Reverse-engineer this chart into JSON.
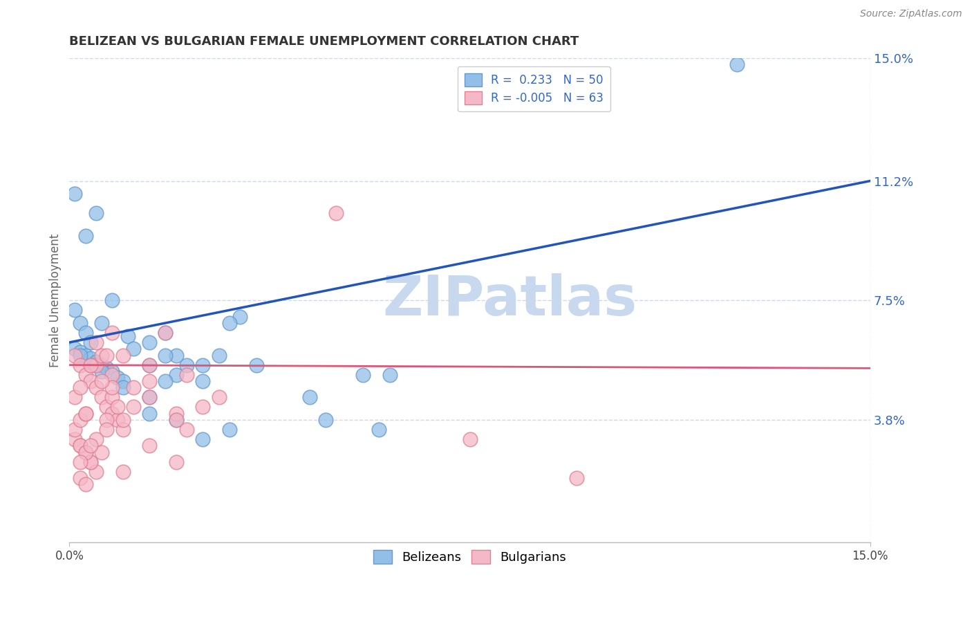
{
  "title": "BELIZEAN VS BULGARIAN FEMALE UNEMPLOYMENT CORRELATION CHART",
  "source_text": "Source: ZipAtlas.com",
  "ylabel": "Female Unemployment",
  "x_min": 0.0,
  "x_max": 15.0,
  "y_min": 0.0,
  "y_max": 15.0,
  "ytick_labels": [
    "3.8%",
    "7.5%",
    "11.2%",
    "15.0%"
  ],
  "ytick_values": [
    3.8,
    7.5,
    11.2,
    15.0
  ],
  "xtick_left_label": "0.0%",
  "xtick_right_label": "15.0%",
  "legend_entry_1": "R =  0.233   N = 50",
  "legend_entry_2": "R = -0.005   N = 63",
  "watermark": "ZIPatlas",
  "watermark_color": "#c8d8ee",
  "blue_dot_color": "#92bfe8",
  "blue_dot_edge": "#6699cc",
  "pink_dot_color": "#f5b8c8",
  "pink_dot_edge": "#e08090",
  "blue_line_color": "#2255bb",
  "pink_line_color": "#dd5577",
  "grid_color": "#d0d8e8",
  "label_color": "#3366cc",
  "axis_label_color": "#666666",
  "title_color": "#333333",
  "source_color": "#888888",
  "background_color": "#ffffff",
  "blue_line_x0": 0.0,
  "blue_line_x1": 15.0,
  "blue_line_y0": 6.2,
  "blue_line_y1": 11.2,
  "pink_line_x0": 0.0,
  "pink_line_x1": 15.0,
  "pink_line_y0": 5.5,
  "pink_line_y1": 5.4,
  "blue_points": [
    [
      0.1,
      10.8
    ],
    [
      0.3,
      9.5
    ],
    [
      0.5,
      10.2
    ],
    [
      0.1,
      7.2
    ],
    [
      0.2,
      6.8
    ],
    [
      0.3,
      6.5
    ],
    [
      0.4,
      6.2
    ],
    [
      0.6,
      6.8
    ],
    [
      0.8,
      7.5
    ],
    [
      0.1,
      6.0
    ],
    [
      0.2,
      5.9
    ],
    [
      0.3,
      5.8
    ],
    [
      0.4,
      5.7
    ],
    [
      0.5,
      5.6
    ],
    [
      0.6,
      5.5
    ],
    [
      0.7,
      5.4
    ],
    [
      0.8,
      5.3
    ],
    [
      0.9,
      5.1
    ],
    [
      1.0,
      5.0
    ],
    [
      1.1,
      6.4
    ],
    [
      0.2,
      5.8
    ],
    [
      0.4,
      5.5
    ],
    [
      0.6,
      5.3
    ],
    [
      1.2,
      6.0
    ],
    [
      1.5,
      6.2
    ],
    [
      1.8,
      6.5
    ],
    [
      2.0,
      5.8
    ],
    [
      1.5,
      5.5
    ],
    [
      2.0,
      5.2
    ],
    [
      2.5,
      5.5
    ],
    [
      1.8,
      5.0
    ],
    [
      1.0,
      4.8
    ],
    [
      1.5,
      4.5
    ],
    [
      1.8,
      5.8
    ],
    [
      2.2,
      5.5
    ],
    [
      2.8,
      5.8
    ],
    [
      3.5,
      5.5
    ],
    [
      1.5,
      4.0
    ],
    [
      2.0,
      3.8
    ],
    [
      3.0,
      3.5
    ],
    [
      4.5,
      4.5
    ],
    [
      2.5,
      5.0
    ],
    [
      5.5,
      5.2
    ],
    [
      3.2,
      7.0
    ],
    [
      6.0,
      5.2
    ],
    [
      12.5,
      14.8
    ],
    [
      4.8,
      3.8
    ],
    [
      5.8,
      3.5
    ],
    [
      3.0,
      6.8
    ],
    [
      2.5,
      3.2
    ]
  ],
  "pink_points": [
    [
      0.1,
      5.8
    ],
    [
      0.2,
      5.5
    ],
    [
      0.3,
      5.2
    ],
    [
      0.4,
      5.0
    ],
    [
      0.5,
      4.8
    ],
    [
      0.6,
      4.5
    ],
    [
      0.7,
      4.2
    ],
    [
      0.8,
      4.0
    ],
    [
      0.9,
      3.8
    ],
    [
      1.0,
      3.5
    ],
    [
      0.1,
      3.2
    ],
    [
      0.2,
      3.0
    ],
    [
      0.3,
      2.8
    ],
    [
      0.4,
      2.5
    ],
    [
      0.5,
      2.2
    ],
    [
      0.2,
      2.0
    ],
    [
      0.3,
      1.8
    ],
    [
      0.4,
      2.5
    ],
    [
      0.6,
      2.8
    ],
    [
      0.1,
      3.5
    ],
    [
      0.2,
      3.8
    ],
    [
      0.3,
      4.0
    ],
    [
      0.5,
      5.5
    ],
    [
      0.8,
      5.2
    ],
    [
      1.0,
      5.8
    ],
    [
      1.5,
      5.5
    ],
    [
      1.2,
      4.8
    ],
    [
      0.8,
      4.5
    ],
    [
      0.5,
      3.2
    ],
    [
      0.7,
      3.8
    ],
    [
      0.9,
      4.2
    ],
    [
      1.5,
      4.5
    ],
    [
      2.0,
      4.0
    ],
    [
      2.2,
      3.5
    ],
    [
      0.2,
      3.0
    ],
    [
      0.3,
      2.8
    ],
    [
      0.7,
      3.5
    ],
    [
      1.0,
      3.8
    ],
    [
      1.2,
      4.2
    ],
    [
      1.5,
      3.0
    ],
    [
      2.0,
      2.5
    ],
    [
      0.1,
      4.5
    ],
    [
      0.2,
      4.8
    ],
    [
      0.8,
      6.5
    ],
    [
      1.5,
      5.0
    ],
    [
      2.2,
      5.2
    ],
    [
      5.0,
      10.2
    ],
    [
      7.5,
      3.2
    ],
    [
      9.5,
      2.0
    ],
    [
      0.4,
      5.5
    ],
    [
      0.6,
      5.8
    ],
    [
      0.5,
      6.2
    ],
    [
      2.0,
      3.8
    ],
    [
      2.8,
      4.5
    ],
    [
      1.0,
      2.2
    ],
    [
      0.4,
      3.0
    ],
    [
      0.8,
      4.8
    ],
    [
      0.6,
      5.0
    ],
    [
      1.8,
      6.5
    ],
    [
      0.3,
      4.0
    ],
    [
      0.2,
      2.5
    ],
    [
      0.7,
      5.8
    ],
    [
      2.5,
      4.2
    ]
  ]
}
